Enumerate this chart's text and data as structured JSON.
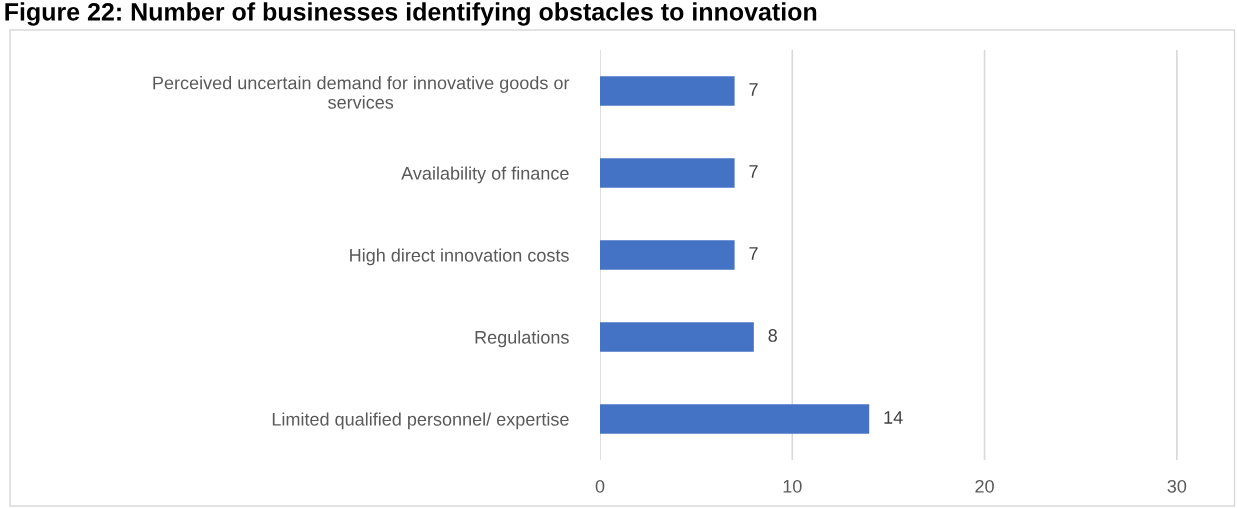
{
  "chart_data": {
    "type": "bar",
    "orientation": "horizontal",
    "title": "Figure 22: Number of businesses identifying obstacles to innovation",
    "categories": [
      "Perceived uncertain demand for innovative goods or services",
      "Availability of finance",
      "High direct innovation costs",
      "Regulations",
      "Limited qualified personnel/ expertise"
    ],
    "values": [
      7,
      7,
      7,
      8,
      14
    ],
    "color": "#4472c4",
    "data_labels": true,
    "xlim": [
      0,
      33
    ],
    "xticks": [
      0,
      10,
      20,
      30
    ],
    "grid": "x"
  }
}
